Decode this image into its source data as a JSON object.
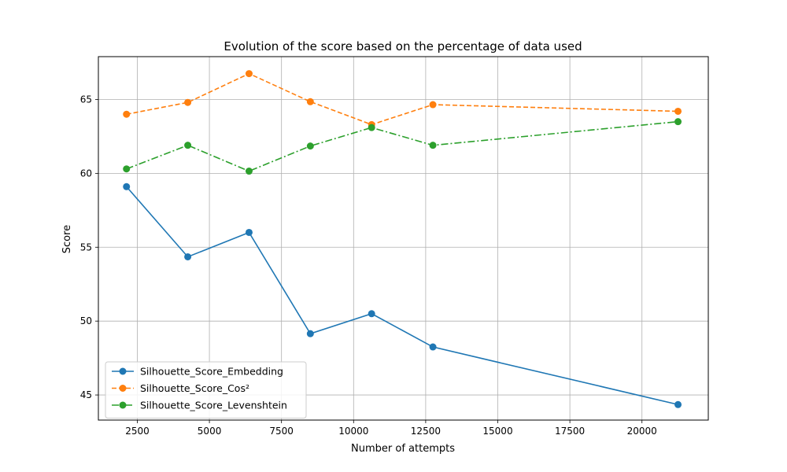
{
  "chart_data": {
    "type": "line",
    "title": "Evolution of the score based on the percentage of data used",
    "xlabel": "Number of attempts",
    "ylabel": "Score",
    "xlim": [
      1150,
      22300
    ],
    "ylim": [
      43.3,
      67.9
    ],
    "xticks": [
      2500,
      5000,
      7500,
      10000,
      12500,
      15000,
      17500,
      20000
    ],
    "yticks": [
      45,
      50,
      55,
      60,
      65
    ],
    "grid": true,
    "legend_position": "lower-left",
    "x": [
      2125,
      4250,
      6375,
      8500,
      10625,
      12750,
      21250
    ],
    "series": [
      {
        "name": "Silhouette_Score_Embedding",
        "color": "#1f77b4",
        "linestyle": "solid",
        "marker": "circle",
        "values": [
          59.1,
          54.35,
          56.0,
          49.15,
          50.5,
          48.25,
          44.35
        ]
      },
      {
        "name": "Silhouette_Score_Cos²",
        "color": "#ff7f0e",
        "linestyle": "dashed",
        "marker": "circle",
        "values": [
          64.0,
          64.8,
          66.75,
          64.85,
          63.3,
          64.65,
          64.2
        ]
      },
      {
        "name": "Silhouette_Score_Levenshtein",
        "color": "#2ca02c",
        "linestyle": "dashdot",
        "marker": "circle",
        "values": [
          60.3,
          61.9,
          60.15,
          61.85,
          63.1,
          61.9,
          63.5
        ]
      }
    ]
  }
}
